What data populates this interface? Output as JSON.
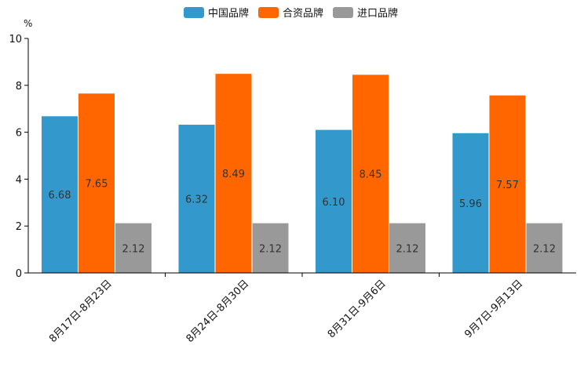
{
  "chart_data": {
    "type": "bar",
    "unit": "%",
    "categories": [
      "8月17日-8月23日",
      "8月24日-8月30日",
      "8月31日-9月6日",
      "9月7日-9月13日"
    ],
    "series": [
      {
        "name": "中国品牌",
        "color": "#3399cc",
        "values": [
          6.68,
          6.32,
          6.1,
          5.96
        ],
        "labels": [
          "6.68",
          "6.32",
          "6.10",
          "5.96"
        ]
      },
      {
        "name": "合资品牌",
        "color": "#ff6600",
        "values": [
          7.65,
          8.49,
          8.45,
          7.57
        ],
        "labels": [
          "7.65",
          "8.49",
          "8.45",
          "7.57"
        ]
      },
      {
        "name": "进口品牌",
        "color": "#999999",
        "values": [
          2.12,
          2.12,
          2.12,
          2.12
        ],
        "labels": [
          "2.12",
          "2.12",
          "2.12",
          "2.12"
        ]
      }
    ],
    "ylim": [
      0,
      10
    ],
    "yticks": [
      0,
      2,
      4,
      6,
      8,
      10
    ],
    "legend_position": "top-center",
    "grid": false
  }
}
